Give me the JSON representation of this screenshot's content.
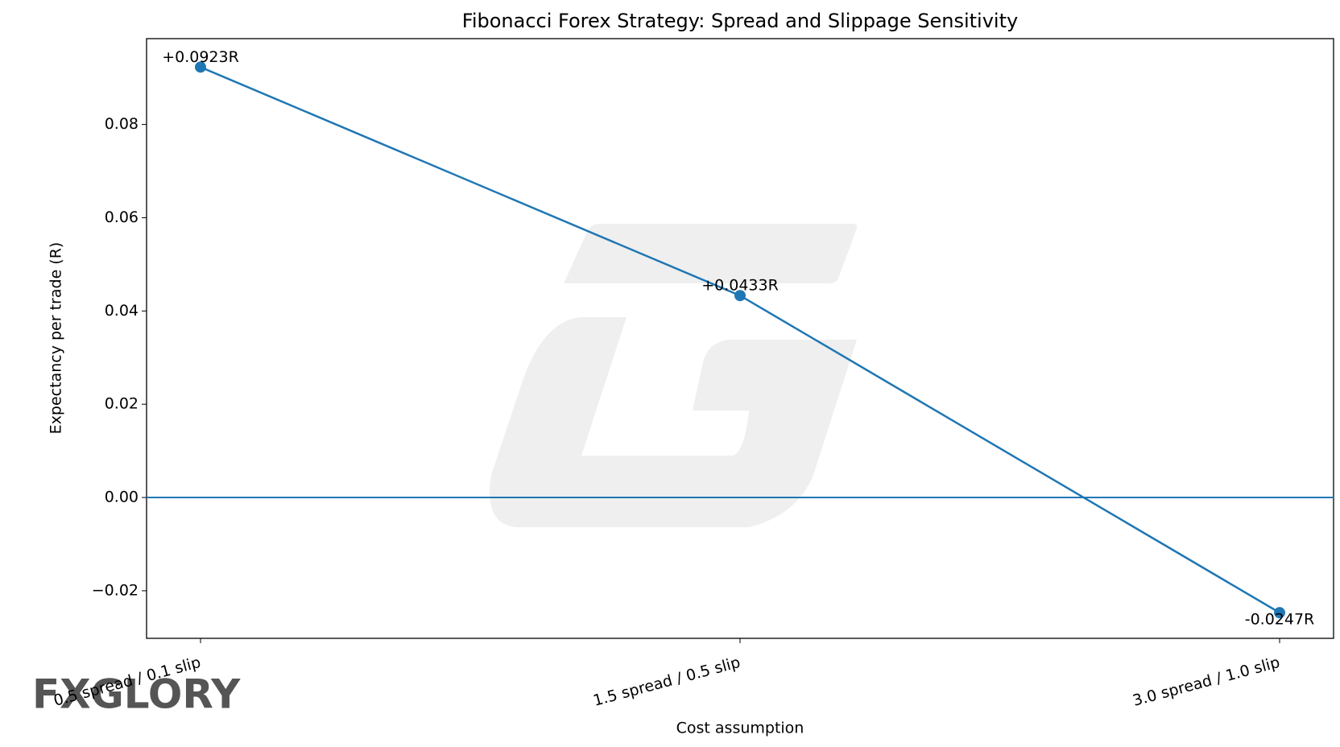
{
  "chart_data": {
    "type": "line",
    "title": "Fibonacci Forex Strategy: Spread and Slippage Sensitivity",
    "x_label": "Cost assumption",
    "y_label": "Expectancy per trade (R)",
    "categories": [
      "0.5 spread / 0.1 slip",
      "1.5 spread / 0.5 slip",
      "3.0 spread / 1.0 slip"
    ],
    "series": [
      {
        "name": "Expectancy",
        "color": "#1f77b4",
        "values": [
          0.0923,
          0.0433,
          -0.0247
        ],
        "value_labels": [
          "+0.0923R",
          "+0.0433R",
          "-0.0247R"
        ]
      }
    ],
    "reference_line": 0,
    "ylim": [
      -0.0302,
      0.0984
    ],
    "yticks": [
      {
        "value": -0.02,
        "label": "−0.02"
      },
      {
        "value": 0,
        "label": "0.00"
      },
      0.02,
      0.04,
      0.06,
      0.08
    ],
    "watermark": "FXGLORY"
  }
}
